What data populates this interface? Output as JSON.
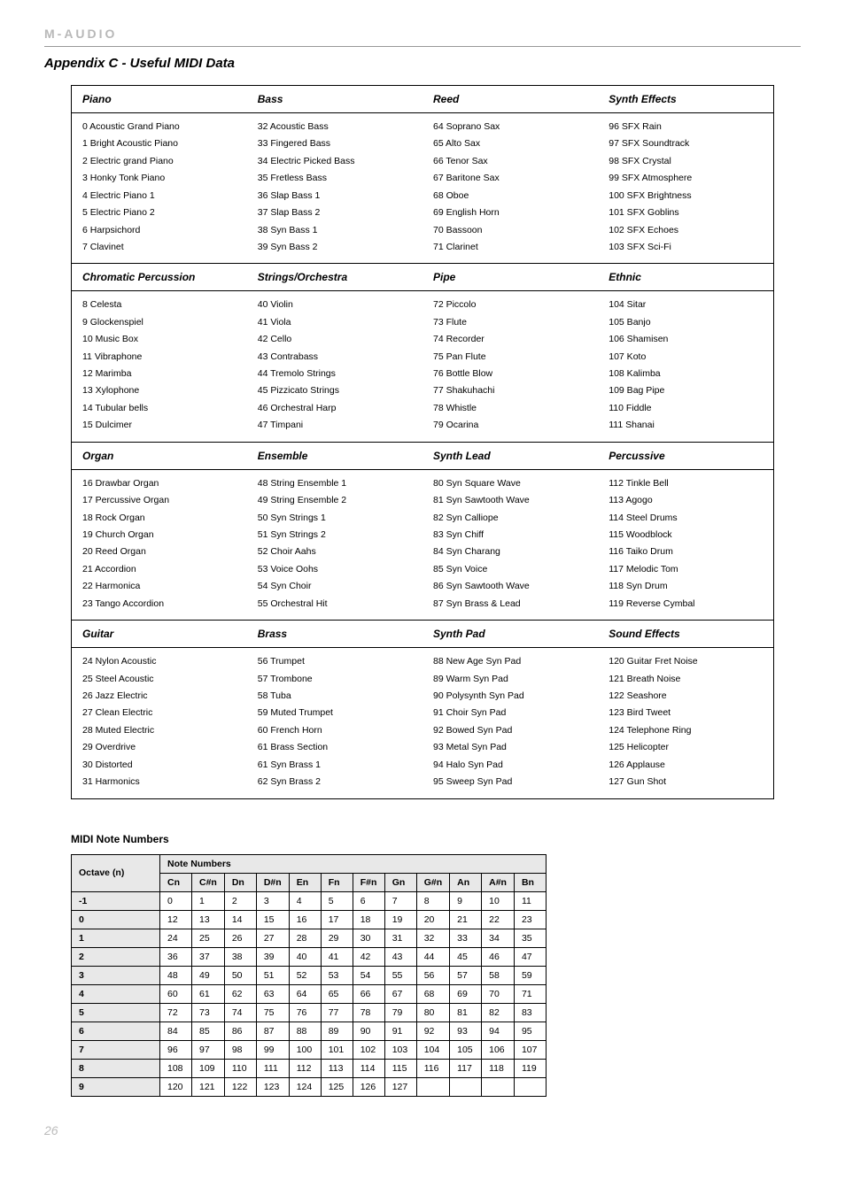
{
  "brand": "M-AUDIO",
  "title": "Appendix C - Useful MIDI Data",
  "page_number": "26",
  "columns": [
    {
      "sections": [
        {
          "name": "Piano",
          "items": [
            "0 Acoustic Grand Piano",
            "1 Bright Acoustic Piano",
            "2 Electric grand Piano",
            "3 Honky Tonk Piano",
            "4 Electric Piano 1",
            "5 Electric Piano 2",
            "6 Harpsichord",
            "7 Clavinet"
          ]
        },
        {
          "name": "Chromatic Percussion",
          "items": [
            "8 Celesta",
            "9 Glockenspiel",
            "10 Music Box",
            "11 Vibraphone",
            "12 Marimba",
            "13 Xylophone",
            "14 Tubular bells",
            "15 Dulcimer"
          ]
        },
        {
          "name": "Organ",
          "items": [
            "16 Drawbar Organ",
            "17 Percussive Organ",
            "18 Rock Organ",
            "19 Church Organ",
            "20 Reed Organ",
            "21 Accordion",
            "22 Harmonica",
            "23 Tango Accordion"
          ]
        },
        {
          "name": "Guitar",
          "items": [
            "24 Nylon Acoustic",
            "25 Steel Acoustic",
            "26 Jazz Electric",
            "27 Clean Electric",
            "28 Muted Electric",
            "29 Overdrive",
            "30 Distorted",
            "31 Harmonics"
          ]
        }
      ]
    },
    {
      "sections": [
        {
          "name": "Bass",
          "items": [
            "32 Acoustic Bass",
            "33 Fingered Bass",
            "34 Electric Picked Bass",
            "35 Fretless Bass",
            "36 Slap Bass 1",
            "37 Slap Bass 2",
            "38 Syn Bass 1",
            "39 Syn Bass 2"
          ]
        },
        {
          "name": "Strings/Orchestra",
          "items": [
            "40 Violin",
            "41 Viola",
            "42 Cello",
            "43 Contrabass",
            "44 Tremolo Strings",
            "45 Pizzicato Strings",
            "46 Orchestral Harp",
            "47 Timpani"
          ]
        },
        {
          "name": "Ensemble",
          "items": [
            "48 String Ensemble 1",
            "49 String Ensemble 2",
            "50 Syn Strings 1",
            "51 Syn Strings 2",
            "52 Choir Aahs",
            "53 Voice Oohs",
            "54 Syn Choir",
            "55 Orchestral Hit"
          ]
        },
        {
          "name": "Brass",
          "items": [
            "56 Trumpet",
            "57 Trombone",
            "58 Tuba",
            "59 Muted Trumpet",
            "60 French Horn",
            "61 Brass Section",
            "61 Syn Brass 1",
            "62 Syn Brass 2"
          ]
        }
      ]
    },
    {
      "sections": [
        {
          "name": "Reed",
          "items": [
            "64 Soprano Sax",
            "65 Alto Sax",
            "66 Tenor Sax",
            "67 Baritone Sax",
            "68 Oboe",
            "69 English Horn",
            "70 Bassoon",
            "71 Clarinet"
          ]
        },
        {
          "name": "Pipe",
          "items": [
            "72 Piccolo",
            "73 Flute",
            "74 Recorder",
            "75 Pan Flute",
            "76 Bottle Blow",
            "77 Shakuhachi",
            "78 Whistle",
            "79 Ocarina"
          ]
        },
        {
          "name": "Synth Lead",
          "items": [
            "80 Syn Square Wave",
            "81 Syn Sawtooth Wave",
            "82 Syn Calliope",
            "83 Syn Chiff",
            "84 Syn Charang",
            "85 Syn Voice",
            "86 Syn Sawtooth Wave",
            "87 Syn Brass & Lead"
          ]
        },
        {
          "name": "Synth Pad",
          "items": [
            "88 New Age Syn Pad",
            "89 Warm Syn Pad",
            "90 Polysynth Syn Pad",
            "91 Choir Syn Pad",
            "92 Bowed Syn Pad",
            "93 Metal Syn Pad",
            "94 Halo Syn Pad",
            "95 Sweep Syn Pad"
          ]
        }
      ]
    },
    {
      "sections": [
        {
          "name": "Synth Effects",
          "items": [
            "96 SFX Rain",
            "97 SFX Soundtrack",
            "98 SFX Crystal",
            "99 SFX Atmosphere",
            "100 SFX Brightness",
            "101 SFX Goblins",
            "102 SFX Echoes",
            "103 SFX Sci-Fi"
          ]
        },
        {
          "name": "Ethnic",
          "items": [
            "104 Sitar",
            "105 Banjo",
            "106 Shamisen",
            "107 Koto",
            "108 Kalimba",
            "109 Bag Pipe",
            "110 Fiddle",
            "111 Shanai"
          ]
        },
        {
          "name": "Percussive",
          "items": [
            "112 Tinkle Bell",
            "113 Agogo",
            "114 Steel Drums",
            "115 Woodblock",
            "116 Taiko Drum",
            "117 Melodic Tom",
            "118 Syn Drum",
            "119 Reverse Cymbal"
          ]
        },
        {
          "name": "Sound Effects",
          "items": [
            "120 Guitar Fret Noise",
            "121 Breath Noise",
            "122 Seashore",
            "123 Bird Tweet",
            "124 Telephone Ring",
            "125 Helicopter",
            "126 Applause",
            "127 Gun Shot"
          ]
        }
      ]
    }
  ],
  "notes_title": "MIDI Note Numbers",
  "notes_table": {
    "octave_header": "Octave (n)",
    "nn_header": "Note Numbers",
    "note_columns": [
      "Cn",
      "C#n",
      "Dn",
      "D#n",
      "En",
      "Fn",
      "F#n",
      "Gn",
      "G#n",
      "An",
      "A#n",
      "Bn"
    ],
    "rows": [
      {
        "octave": "-1",
        "vals": [
          "0",
          "1",
          "2",
          "3",
          "4",
          "5",
          "6",
          "7",
          "8",
          "9",
          "10",
          "11"
        ]
      },
      {
        "octave": "0",
        "vals": [
          "12",
          "13",
          "14",
          "15",
          "16",
          "17",
          "18",
          "19",
          "20",
          "21",
          "22",
          "23"
        ]
      },
      {
        "octave": "1",
        "vals": [
          "24",
          "25",
          "26",
          "27",
          "28",
          "29",
          "30",
          "31",
          "32",
          "33",
          "34",
          "35"
        ]
      },
      {
        "octave": "2",
        "vals": [
          "36",
          "37",
          "38",
          "39",
          "40",
          "41",
          "42",
          "43",
          "44",
          "45",
          "46",
          "47"
        ]
      },
      {
        "octave": "3",
        "vals": [
          "48",
          "49",
          "50",
          "51",
          "52",
          "53",
          "54",
          "55",
          "56",
          "57",
          "58",
          "59"
        ]
      },
      {
        "octave": "4",
        "vals": [
          "60",
          "61",
          "62",
          "63",
          "64",
          "65",
          "66",
          "67",
          "68",
          "69",
          "70",
          "71"
        ]
      },
      {
        "octave": "5",
        "vals": [
          "72",
          "73",
          "74",
          "75",
          "76",
          "77",
          "78",
          "79",
          "80",
          "81",
          "82",
          "83"
        ]
      },
      {
        "octave": "6",
        "vals": [
          "84",
          "85",
          "86",
          "87",
          "88",
          "89",
          "90",
          "91",
          "92",
          "93",
          "94",
          "95"
        ]
      },
      {
        "octave": "7",
        "vals": [
          "96",
          "97",
          "98",
          "99",
          "100",
          "101",
          "102",
          "103",
          "104",
          "105",
          "106",
          "107"
        ]
      },
      {
        "octave": "8",
        "vals": [
          "108",
          "109",
          "110",
          "111",
          "112",
          "113",
          "114",
          "115",
          "116",
          "117",
          "118",
          "119"
        ]
      },
      {
        "octave": "9",
        "vals": [
          "120",
          "121",
          "122",
          "123",
          "124",
          "125",
          "126",
          "127",
          "",
          "",
          "",
          ""
        ]
      }
    ]
  }
}
